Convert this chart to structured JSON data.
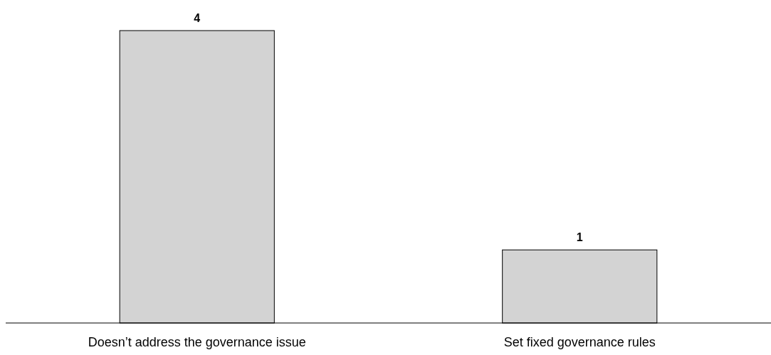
{
  "chart_data": {
    "type": "bar",
    "categories": [
      "Doesn’t address the governance issue",
      "Set fixed governance rules"
    ],
    "values": [
      4,
      1
    ],
    "color": "#d3d3d3",
    "data_labels": true,
    "tick_labels": "x"
  }
}
